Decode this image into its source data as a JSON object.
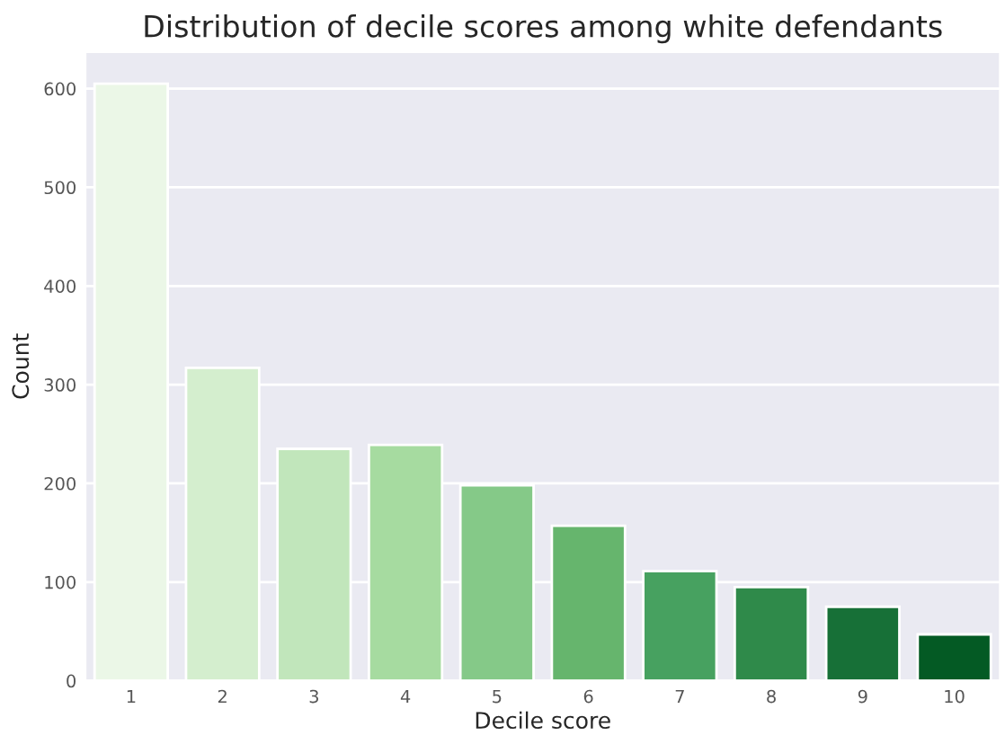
{
  "chart_data": {
    "type": "bar",
    "title": "Distribution of decile scores among white defendants",
    "xlabel": "Decile score",
    "ylabel": "Count",
    "categories": [
      "1",
      "2",
      "3",
      "4",
      "5",
      "6",
      "7",
      "8",
      "9",
      "10"
    ],
    "values": [
      605,
      317,
      235,
      239,
      198,
      157,
      111,
      95,
      75,
      47
    ],
    "colors": [
      "#ebf7e7",
      "#d4eece",
      "#c1e6bb",
      "#a6dba0",
      "#85c988",
      "#66b56d",
      "#47a160",
      "#2f8a4a",
      "#177037",
      "#045a24"
    ],
    "ylim": [
      0,
      637
    ],
    "yticks": [
      0,
      100,
      200,
      300,
      400,
      500,
      600
    ],
    "grid": "y"
  }
}
